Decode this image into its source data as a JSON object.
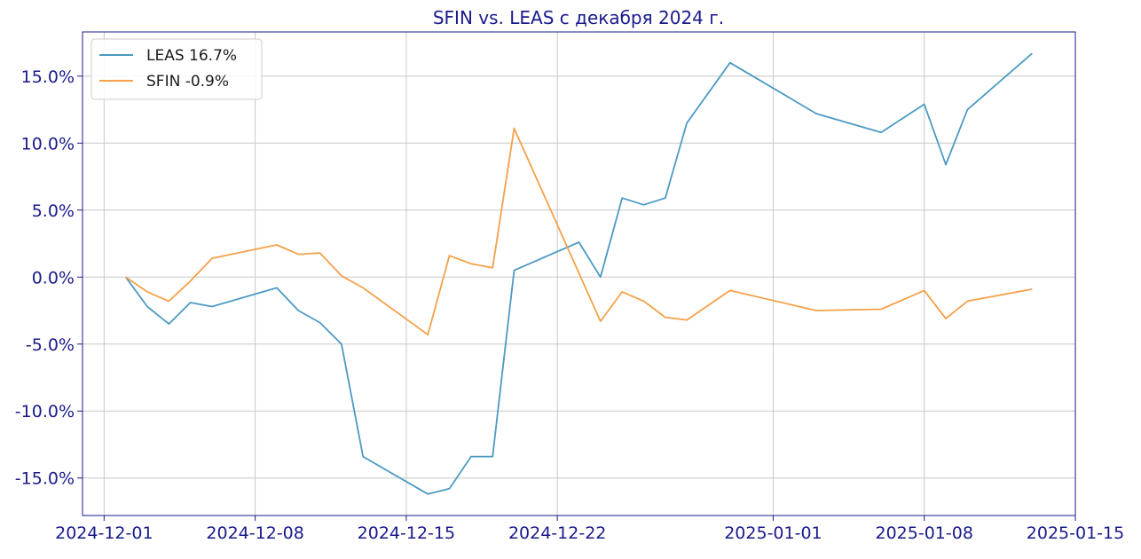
{
  "chart_data": {
    "type": "line",
    "title": "SFIN vs. LEAS с декабря 2024 г.",
    "xlabel": "",
    "ylabel": "",
    "xlim": [
      "2024-11-30",
      "2025-01-15"
    ],
    "ylim": [
      -17.8,
      18.3
    ],
    "x_ticks": [
      "2024-12-01",
      "2024-12-08",
      "2024-12-15",
      "2024-12-22",
      "2025-01-01",
      "2025-01-08",
      "2025-01-15"
    ],
    "y_ticks": [
      15,
      10,
      5,
      0,
      -5,
      -10,
      -15
    ],
    "y_tick_labels": [
      "15.0%",
      "10.0%",
      "5.0%",
      "0.0%",
      "-5.0%",
      "-10.0%",
      "-15.0%"
    ],
    "grid": true,
    "legend_position": "top-left",
    "series": [
      {
        "name": "LEAS 16.7%",
        "color": "#4c9ac4",
        "points": [
          {
            "x": "2024-12-02",
            "y": 0.0
          },
          {
            "x": "2024-12-03",
            "y": -2.2
          },
          {
            "x": "2024-12-04",
            "y": -3.5
          },
          {
            "x": "2024-12-05",
            "y": -1.9
          },
          {
            "x": "2024-12-06",
            "y": -2.2
          },
          {
            "x": "2024-12-09",
            "y": -0.8
          },
          {
            "x": "2024-12-10",
            "y": -2.5
          },
          {
            "x": "2024-12-11",
            "y": -3.4
          },
          {
            "x": "2024-12-12",
            "y": -5.0
          },
          {
            "x": "2024-12-13",
            "y": -13.4
          },
          {
            "x": "2024-12-16",
            "y": -16.2
          },
          {
            "x": "2024-12-17",
            "y": -15.8
          },
          {
            "x": "2024-12-18",
            "y": -13.4
          },
          {
            "x": "2024-12-19",
            "y": -13.4
          },
          {
            "x": "2024-12-20",
            "y": 0.5
          },
          {
            "x": "2024-12-23",
            "y": 2.6
          },
          {
            "x": "2024-12-24",
            "y": 0.0
          },
          {
            "x": "2024-12-25",
            "y": 5.9
          },
          {
            "x": "2024-12-26",
            "y": 5.4
          },
          {
            "x": "2024-12-27",
            "y": 5.9
          },
          {
            "x": "2024-12-28",
            "y": 11.5
          },
          {
            "x": "2024-12-30",
            "y": 16.0
          },
          {
            "x": "2025-01-03",
            "y": 12.2
          },
          {
            "x": "2025-01-06",
            "y": 10.8
          },
          {
            "x": "2025-01-08",
            "y": 12.9
          },
          {
            "x": "2025-01-09",
            "y": 8.4
          },
          {
            "x": "2025-01-10",
            "y": 12.5
          },
          {
            "x": "2025-01-13",
            "y": 16.7
          }
        ]
      },
      {
        "name": "SFIN -0.9%",
        "color": "#f5a04a",
        "points": [
          {
            "x": "2024-12-02",
            "y": 0.0
          },
          {
            "x": "2024-12-03",
            "y": -1.1
          },
          {
            "x": "2024-12-04",
            "y": -1.8
          },
          {
            "x": "2024-12-05",
            "y": -0.3
          },
          {
            "x": "2024-12-06",
            "y": 1.4
          },
          {
            "x": "2024-12-09",
            "y": 2.4
          },
          {
            "x": "2024-12-10",
            "y": 1.7
          },
          {
            "x": "2024-12-11",
            "y": 1.8
          },
          {
            "x": "2024-12-12",
            "y": 0.1
          },
          {
            "x": "2024-12-13",
            "y": -0.8
          },
          {
            "x": "2024-12-16",
            "y": -4.3
          },
          {
            "x": "2024-12-17",
            "y": 1.6
          },
          {
            "x": "2024-12-18",
            "y": 1.0
          },
          {
            "x": "2024-12-19",
            "y": 0.7
          },
          {
            "x": "2024-12-20",
            "y": 11.1
          },
          {
            "x": "2024-12-24",
            "y": -3.3
          },
          {
            "x": "2024-12-25",
            "y": -1.1
          },
          {
            "x": "2024-12-26",
            "y": -1.8
          },
          {
            "x": "2024-12-27",
            "y": -3.0
          },
          {
            "x": "2024-12-28",
            "y": -3.2
          },
          {
            "x": "2024-12-30",
            "y": -1.0
          },
          {
            "x": "2025-01-03",
            "y": -2.5
          },
          {
            "x": "2025-01-06",
            "y": -2.4
          },
          {
            "x": "2025-01-08",
            "y": -1.0
          },
          {
            "x": "2025-01-09",
            "y": -3.1
          },
          {
            "x": "2025-01-10",
            "y": -1.8
          },
          {
            "x": "2025-01-13",
            "y": -0.9
          }
        ]
      }
    ]
  }
}
